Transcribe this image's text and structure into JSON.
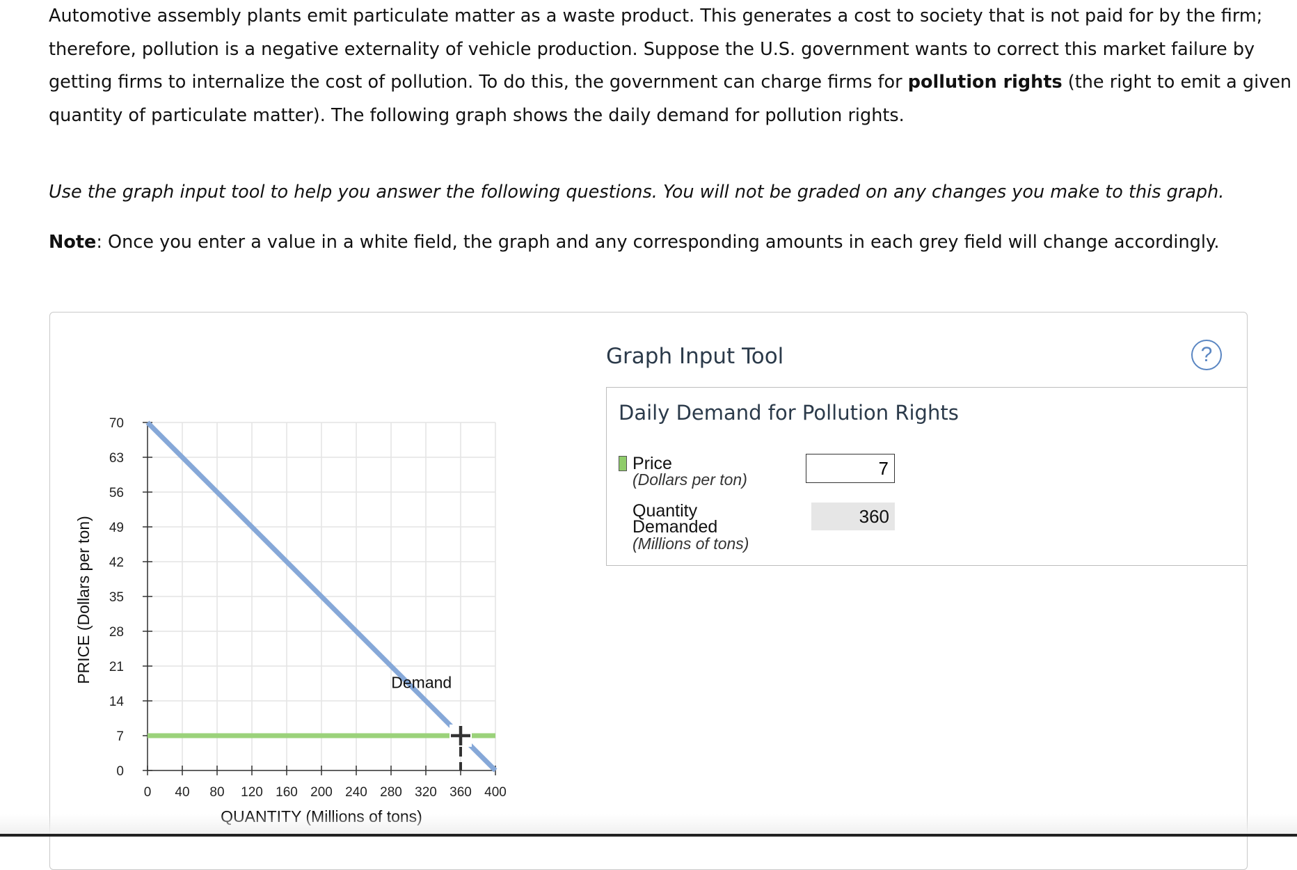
{
  "intro": {
    "p1": "Automotive assembly plants emit particulate matter as a waste product. This generates a cost to society that is not paid for by the firm; therefore, pollution is a negative externality of vehicle production. Suppose the U.S. government wants to correct this market failure by getting firms to internalize the cost of pollution. To do this, the government can charge firms for ",
    "p1_bold": "pollution rights",
    "p1_end": " (the right to emit a given quantity of particulate matter). The following graph shows the daily demand for pollution rights.",
    "instruction": "Use the graph input tool to help you answer the following questions. You will not be graded on any changes you make to this graph.",
    "note_label": "Note",
    "note_text": ": Once you enter a value in a white field, the graph and any corresponding amounts in each grey field will change accordingly."
  },
  "tool": {
    "title": "Graph Input Tool",
    "help_symbol": "?",
    "subtitle": "Daily Demand for Pollution Rights",
    "price_label": "Price",
    "price_unit": "(Dollars per ton)",
    "price_value": "7",
    "qty_label1": "Quantity",
    "qty_label2": "Demanded",
    "qty_unit": "(Millions of tons)",
    "qty_value": "360"
  },
  "colors": {
    "demand": "#86a8d8",
    "price_line": "#9bd27a",
    "grid": "#e4e4e4",
    "accent": "#5a86c2"
  },
  "chart_data": {
    "type": "line",
    "title": "",
    "xlabel": "QUANTITY (Millions of tons)",
    "ylabel": "PRICE (Dollars per ton)",
    "xlim": [
      0,
      400
    ],
    "ylim": [
      0,
      70
    ],
    "x_ticks": [
      0,
      40,
      80,
      120,
      160,
      200,
      240,
      280,
      320,
      360,
      400
    ],
    "y_ticks": [
      0,
      7,
      14,
      21,
      28,
      35,
      42,
      49,
      56,
      63,
      70
    ],
    "grid": true,
    "series": [
      {
        "name": "Demand",
        "points": [
          [
            0,
            70
          ],
          [
            400,
            0
          ]
        ]
      }
    ],
    "price_line": {
      "y": 7
    },
    "marker": {
      "x": 360,
      "y": 7
    },
    "labels": [
      {
        "text": "Demand",
        "x": 315,
        "y": 18
      }
    ]
  }
}
